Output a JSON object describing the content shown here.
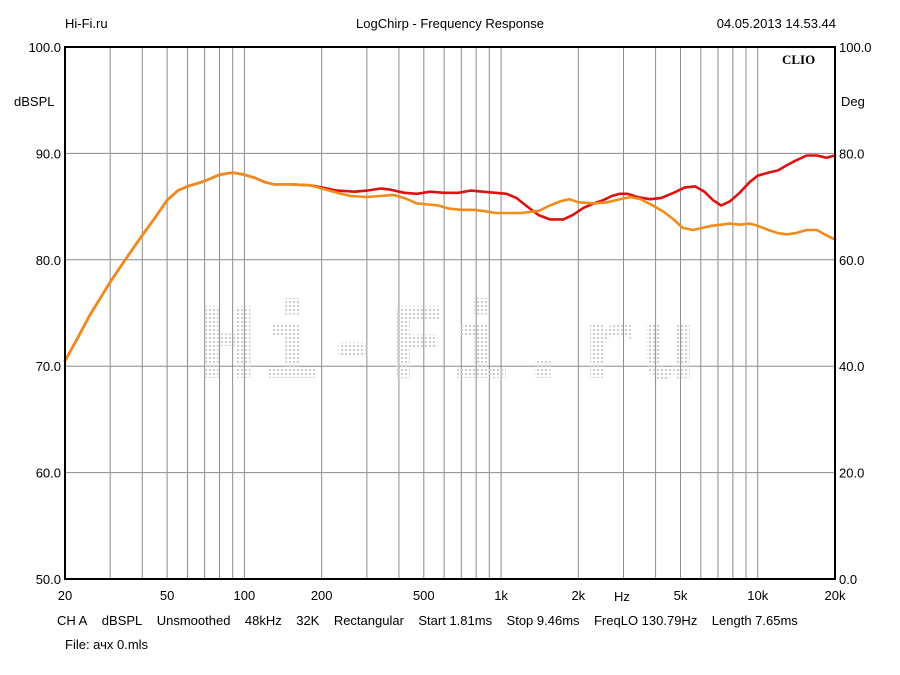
{
  "header": {
    "left": "Hi-Fi.ru",
    "center": "LogChirp - Frequency Response",
    "right": "04.05.2013 14.53.44"
  },
  "brand": "CLIO",
  "watermark": "Hi-Fi.ru",
  "footer": {
    "line1": [
      "CH A",
      "dBSPL",
      "Unsmoothed",
      "48kHz",
      "32K",
      "Rectangular",
      "Start 1.81ms",
      "Stop 9.46ms",
      "FreqLO 130.79Hz",
      "Length 7.65ms"
    ],
    "file": "File: ачх 0.mls"
  },
  "chart_data": {
    "type": "line",
    "title": "LogChirp - Frequency Response",
    "xlabel": "Hz",
    "ylabel": "dBSPL",
    "y2label": "Deg",
    "x_scale": "log",
    "xlim": [
      20,
      20000
    ],
    "ylim": [
      50,
      100
    ],
    "y2lim": [
      0,
      100
    ],
    "grid": true,
    "x_ticks": [
      {
        "value": 20,
        "label": "20"
      },
      {
        "value": 50,
        "label": "50"
      },
      {
        "value": 100,
        "label": "100"
      },
      {
        "value": 200,
        "label": "200"
      },
      {
        "value": 500,
        "label": "500"
      },
      {
        "value": 1000,
        "label": "1k"
      },
      {
        "value": 2000,
        "label": "2k"
      },
      {
        "value": 5000,
        "label": "5k"
      },
      {
        "value": 10000,
        "label": "10k"
      },
      {
        "value": 20000,
        "label": "20k"
      }
    ],
    "y_ticks": [
      {
        "value": 50,
        "label": "50.0",
        "right": "0.0"
      },
      {
        "value": 60,
        "label": "60.0",
        "right": "20.0"
      },
      {
        "value": 70,
        "label": "70.0",
        "right": "40.0"
      },
      {
        "value": 80,
        "label": "80.0",
        "right": "60.0"
      },
      {
        "value": 90,
        "label": "90.0",
        "right": "80.0"
      },
      {
        "value": 100,
        "label": "100.0",
        "right": "100.0"
      }
    ],
    "series": [
      {
        "color": "#dd1111",
        "points": [
          [
            20,
            70.5
          ],
          [
            22,
            72.3
          ],
          [
            25,
            74.8
          ],
          [
            30,
            77.9
          ],
          [
            35,
            80.3
          ],
          [
            40,
            82.3
          ],
          [
            45,
            84.0
          ],
          [
            50,
            85.6
          ],
          [
            55,
            86.5
          ],
          [
            60,
            86.9
          ],
          [
            70,
            87.4
          ],
          [
            80,
            88.0
          ],
          [
            90,
            88.2
          ],
          [
            100,
            88.0
          ],
          [
            110,
            87.7
          ],
          [
            120,
            87.3
          ],
          [
            130,
            87.1
          ],
          [
            150,
            87.1
          ],
          [
            180,
            87.0
          ],
          [
            200,
            86.8
          ],
          [
            230,
            86.5
          ],
          [
            270,
            86.4
          ],
          [
            300,
            86.5
          ],
          [
            340,
            86.7
          ],
          [
            370,
            86.6
          ],
          [
            420,
            86.3
          ],
          [
            470,
            86.2
          ],
          [
            530,
            86.4
          ],
          [
            600,
            86.3
          ],
          [
            680,
            86.3
          ],
          [
            760,
            86.5
          ],
          [
            850,
            86.4
          ],
          [
            950,
            86.3
          ],
          [
            1050,
            86.2
          ],
          [
            1150,
            85.8
          ],
          [
            1250,
            85.1
          ],
          [
            1400,
            84.2
          ],
          [
            1550,
            83.8
          ],
          [
            1750,
            83.8
          ],
          [
            1900,
            84.2
          ],
          [
            2100,
            84.9
          ],
          [
            2300,
            85.3
          ],
          [
            2500,
            85.6
          ],
          [
            2700,
            86.0
          ],
          [
            2900,
            86.2
          ],
          [
            3100,
            86.2
          ],
          [
            3400,
            85.9
          ],
          [
            3800,
            85.7
          ],
          [
            4200,
            85.8
          ],
          [
            4700,
            86.3
          ],
          [
            5200,
            86.8
          ],
          [
            5700,
            86.9
          ],
          [
            6200,
            86.4
          ],
          [
            6700,
            85.6
          ],
          [
            7200,
            85.1
          ],
          [
            7800,
            85.5
          ],
          [
            8500,
            86.3
          ],
          [
            9300,
            87.3
          ],
          [
            10000,
            87.9
          ],
          [
            11000,
            88.2
          ],
          [
            12000,
            88.4
          ],
          [
            13000,
            88.9
          ],
          [
            14000,
            89.3
          ],
          [
            15500,
            89.8
          ],
          [
            17000,
            89.8
          ],
          [
            18500,
            89.6
          ],
          [
            20000,
            89.8
          ]
        ]
      },
      {
        "color": "#f08c1a",
        "points": [
          [
            20,
            70.5
          ],
          [
            22,
            72.3
          ],
          [
            25,
            74.8
          ],
          [
            30,
            77.9
          ],
          [
            35,
            80.3
          ],
          [
            40,
            82.3
          ],
          [
            45,
            84.0
          ],
          [
            50,
            85.6
          ],
          [
            55,
            86.5
          ],
          [
            60,
            86.9
          ],
          [
            70,
            87.4
          ],
          [
            80,
            88.0
          ],
          [
            90,
            88.2
          ],
          [
            100,
            88.0
          ],
          [
            110,
            87.7
          ],
          [
            120,
            87.3
          ],
          [
            130,
            87.1
          ],
          [
            150,
            87.1
          ],
          [
            180,
            87.0
          ],
          [
            200,
            86.7
          ],
          [
            230,
            86.3
          ],
          [
            260,
            86.0
          ],
          [
            300,
            85.9
          ],
          [
            340,
            86.0
          ],
          [
            380,
            86.1
          ],
          [
            420,
            85.8
          ],
          [
            470,
            85.3
          ],
          [
            520,
            85.2
          ],
          [
            570,
            85.1
          ],
          [
            630,
            84.8
          ],
          [
            700,
            84.7
          ],
          [
            780,
            84.7
          ],
          [
            850,
            84.6
          ],
          [
            950,
            84.4
          ],
          [
            1100,
            84.4
          ],
          [
            1200,
            84.4
          ],
          [
            1400,
            84.6
          ],
          [
            1550,
            85.1
          ],
          [
            1700,
            85.5
          ],
          [
            1850,
            85.7
          ],
          [
            2000,
            85.4
          ],
          [
            2300,
            85.3
          ],
          [
            2600,
            85.4
          ],
          [
            2900,
            85.7
          ],
          [
            3200,
            85.9
          ],
          [
            3500,
            85.7
          ],
          [
            3900,
            85.1
          ],
          [
            4300,
            84.5
          ],
          [
            4700,
            83.8
          ],
          [
            5100,
            83.0
          ],
          [
            5600,
            82.8
          ],
          [
            6100,
            83.0
          ],
          [
            6600,
            83.2
          ],
          [
            7200,
            83.3
          ],
          [
            7800,
            83.4
          ],
          [
            8500,
            83.3
          ],
          [
            9300,
            83.4
          ],
          [
            10000,
            83.2
          ],
          [
            11000,
            82.8
          ],
          [
            12000,
            82.5
          ],
          [
            13000,
            82.4
          ],
          [
            14000,
            82.5
          ],
          [
            15500,
            82.8
          ],
          [
            17000,
            82.8
          ],
          [
            18500,
            82.3
          ],
          [
            20000,
            81.9
          ]
        ]
      }
    ]
  }
}
